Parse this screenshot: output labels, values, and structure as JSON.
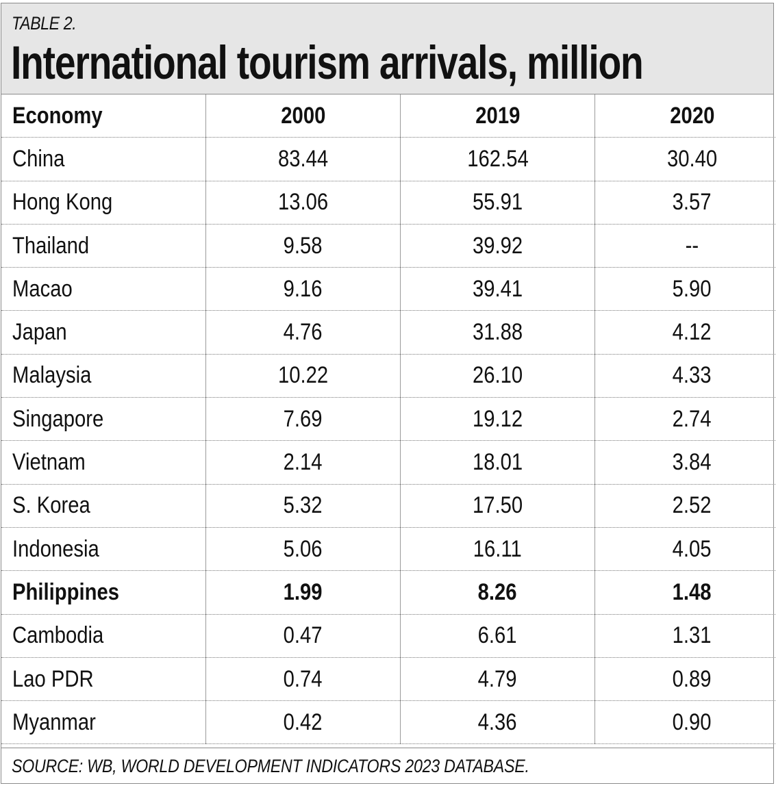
{
  "chart_data": {
    "type": "table",
    "label": "TABLE 2.",
    "title": "International tourism arrivals, million",
    "columns": [
      "Economy",
      "2000",
      "2019",
      "2020"
    ],
    "rows": [
      {
        "economy": "China",
        "y2000": "83.44",
        "y2019": "162.54",
        "y2020": "30.40"
      },
      {
        "economy": "Hong Kong",
        "y2000": "13.06",
        "y2019": "55.91",
        "y2020": "3.57"
      },
      {
        "economy": "Thailand",
        "y2000": "9.58",
        "y2019": "39.92",
        "y2020": "--"
      },
      {
        "economy": "Macao",
        "y2000": "9.16",
        "y2019": "39.41",
        "y2020": "5.90"
      },
      {
        "economy": "Japan",
        "y2000": "4.76",
        "y2019": "31.88",
        "y2020": "4.12"
      },
      {
        "economy": "Malaysia",
        "y2000": "10.22",
        "y2019": "26.10",
        "y2020": "4.33"
      },
      {
        "economy": "Singapore",
        "y2000": "7.69",
        "y2019": "19.12",
        "y2020": "2.74"
      },
      {
        "economy": "Vietnam",
        "y2000": "2.14",
        "y2019": "18.01",
        "y2020": "3.84"
      },
      {
        "economy": "S. Korea",
        "y2000": "5.32",
        "y2019": "17.50",
        "y2020": "2.52"
      },
      {
        "economy": "Indonesia",
        "y2000": "5.06",
        "y2019": "16.11",
        "y2020": "4.05"
      },
      {
        "economy": "Philippines",
        "y2000": "1.99",
        "y2019": "8.26",
        "y2020": "1.48",
        "highlight": true
      },
      {
        "economy": "Cambodia",
        "y2000": "0.47",
        "y2019": "6.61",
        "y2020": "1.31"
      },
      {
        "economy": "Lao PDR",
        "y2000": "0.74",
        "y2019": "4.79",
        "y2020": "0.89"
      },
      {
        "economy": "Myanmar",
        "y2000": "0.42",
        "y2019": "4.36",
        "y2020": "0.90"
      }
    ],
    "source": "SOURCE: WB, WORLD DEVELOPMENT INDICATORS 2023 DATABASE."
  },
  "colors": {
    "header_background": "#e6e6e6",
    "text": "#111111",
    "rule": "#8a8a8a"
  }
}
